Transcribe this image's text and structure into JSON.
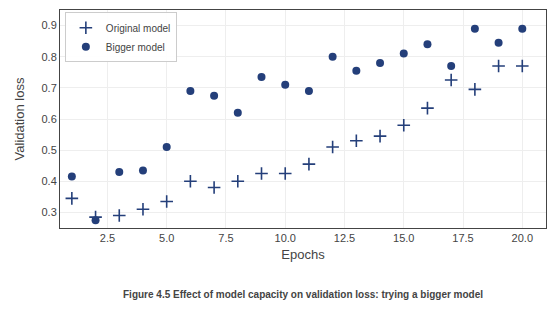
{
  "chart_data": {
    "type": "scatter",
    "caption": "Figure 4.5 Effect of model capacity on validation loss: trying a bigger model",
    "xlabel": "Epochs",
    "ylabel": "Validation loss",
    "series": [
      {
        "name": "Original model",
        "color": "#243f7a",
        "marker": "plus",
        "x": [
          1,
          2,
          3,
          4,
          5,
          6,
          7,
          8,
          9,
          10,
          11,
          12,
          13,
          14,
          15,
          16,
          17,
          18,
          19,
          20
        ],
        "values": [
          0.345,
          0.285,
          0.29,
          0.31,
          0.335,
          0.4,
          0.38,
          0.4,
          0.425,
          0.425,
          0.455,
          0.51,
          0.53,
          0.545,
          0.58,
          0.635,
          0.725,
          0.695,
          0.77,
          0.77
        ]
      },
      {
        "name": "Bigger model",
        "color": "#243f7a",
        "marker": "circle",
        "x": [
          1,
          2,
          3,
          4,
          5,
          6,
          7,
          8,
          9,
          10,
          11,
          12,
          13,
          14,
          15,
          16,
          17,
          18,
          19,
          20
        ],
        "values": [
          0.415,
          0.275,
          0.43,
          0.435,
          0.51,
          0.69,
          0.675,
          0.62,
          0.735,
          0.71,
          0.69,
          0.8,
          0.755,
          0.78,
          0.81,
          0.84,
          0.77,
          0.89,
          0.845,
          0.89
        ]
      }
    ],
    "xlim": [
      0.5,
      21
    ],
    "ylim": [
      0.25,
      0.95
    ],
    "xticks": [
      2.5,
      {
        "value": 5,
        "label": "5.0"
      },
      7.5,
      {
        "value": 10,
        "label": "10.0"
      },
      12.5,
      {
        "value": 15,
        "label": "15.0"
      },
      17.5,
      {
        "value": 20,
        "label": "20.0"
      }
    ],
    "yticks": [
      0.3,
      0.4,
      0.5,
      0.6,
      0.7,
      0.8,
      0.9
    ],
    "legend": "upper left"
  }
}
